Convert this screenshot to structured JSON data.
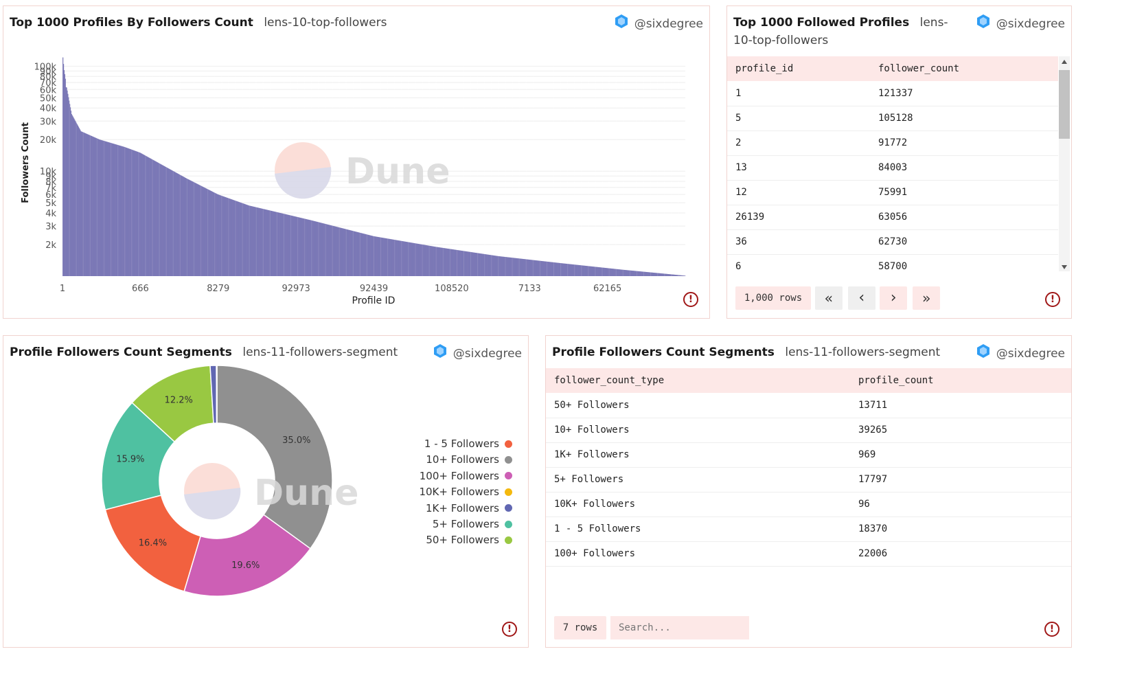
{
  "panels": {
    "bar_panel": {
      "title": "Top 1000 Profiles By Followers Count",
      "query": "lens-10-top-followers",
      "author": "@sixdegree",
      "warning_icon": "!"
    },
    "top_table_panel": {
      "title": "Top 1000 Followed Profiles",
      "query": "lens-10-top-followers",
      "author": "@sixdegree",
      "columns": [
        "profile_id",
        "follower_count"
      ],
      "rows": [
        [
          "1",
          "121337"
        ],
        [
          "5",
          "105128"
        ],
        [
          "2",
          "91772"
        ],
        [
          "13",
          "84003"
        ],
        [
          "12",
          "75991"
        ],
        [
          "26139",
          "63056"
        ],
        [
          "36",
          "62730"
        ],
        [
          "6",
          "58700"
        ]
      ],
      "row_count": "1,000 rows",
      "pager": {
        "first": "«",
        "prev": "‹",
        "next": "›",
        "last": "»"
      },
      "warning_icon": "!"
    },
    "pie_panel": {
      "title": "Profile Followers Count Segments",
      "query": "lens-11-followers-segment",
      "author": "@sixdegree",
      "warning_icon": "!"
    },
    "segment_table_panel": {
      "title": "Profile Followers Count Segments",
      "query": "lens-11-followers-segment",
      "author": "@sixdegree",
      "columns": [
        "follower_count_type",
        "profile_count"
      ],
      "rows": [
        [
          "50+ Followers",
          "13711"
        ],
        [
          "10+ Followers",
          "39265"
        ],
        [
          "1K+ Followers",
          "969"
        ],
        [
          "5+ Followers",
          "17797"
        ],
        [
          "10K+ Followers",
          "96"
        ],
        [
          "1 - 5 Followers",
          "18370"
        ],
        [
          "100+ Followers",
          "22006"
        ]
      ],
      "row_count": "7 rows",
      "search_placeholder": "Search...",
      "warning_icon": "!"
    }
  },
  "watermark": "Dune",
  "colors": {
    "bar": "#7b78b6",
    "header_bg": "#fde8e7",
    "warning": "#a01717",
    "border": "#f1d3cf"
  },
  "chart_data": [
    {
      "type": "bar",
      "title": "Top 1000 Profiles By Followers Count",
      "xlabel": "Profile ID",
      "ylabel": "Followers Count",
      "yscale": "log",
      "ylim": [
        1000,
        130000
      ],
      "y_ticks": [
        {
          "value": 100000,
          "label": "100k"
        },
        {
          "value": 90000,
          "label": "90k"
        },
        {
          "value": 80000,
          "label": "80k"
        },
        {
          "value": 70000,
          "label": "70k"
        },
        {
          "value": 60000,
          "label": "60k"
        },
        {
          "value": 50000,
          "label": "50k"
        },
        {
          "value": 40000,
          "label": "40k"
        },
        {
          "value": 30000,
          "label": "30k"
        },
        {
          "value": 20000,
          "label": "20k"
        },
        {
          "value": 10000,
          "label": "10k"
        },
        {
          "value": 9000,
          "label": "9k"
        },
        {
          "value": 8000,
          "label": "8k"
        },
        {
          "value": 7000,
          "label": "7k"
        },
        {
          "value": 6000,
          "label": "6k"
        },
        {
          "value": 5000,
          "label": "5k"
        },
        {
          "value": 4000,
          "label": "4k"
        },
        {
          "value": 3000,
          "label": "3k"
        },
        {
          "value": 2000,
          "label": "2k"
        }
      ],
      "x_tick_labels": [
        "1",
        "666",
        "8279",
        "92973",
        "92439",
        "108520",
        "7133",
        "62165"
      ],
      "bar_count": 1000,
      "profile_rank_samples": [
        {
          "rank": 1,
          "value": 121337
        },
        {
          "rank": 2,
          "value": 105128
        },
        {
          "rank": 3,
          "value": 91772
        },
        {
          "rank": 4,
          "value": 84003
        },
        {
          "rank": 5,
          "value": 75991
        },
        {
          "rank": 6,
          "value": 63056
        },
        {
          "rank": 7,
          "value": 62730
        },
        {
          "rank": 8,
          "value": 58700
        },
        {
          "rank": 15,
          "value": 35000
        },
        {
          "rank": 30,
          "value": 24000
        },
        {
          "rank": 60,
          "value": 20000
        },
        {
          "rank": 100,
          "value": 17000
        },
        {
          "rank": 125,
          "value": 15000
        },
        {
          "rank": 160,
          "value": 11500
        },
        {
          "rank": 200,
          "value": 8500
        },
        {
          "rank": 250,
          "value": 6000
        },
        {
          "rank": 300,
          "value": 4700
        },
        {
          "rank": 350,
          "value": 4000
        },
        {
          "rank": 400,
          "value": 3400
        },
        {
          "rank": 500,
          "value": 2400
        },
        {
          "rank": 600,
          "value": 1900
        },
        {
          "rank": 700,
          "value": 1550
        },
        {
          "rank": 800,
          "value": 1330
        },
        {
          "rank": 900,
          "value": 1150
        },
        {
          "rank": 1000,
          "value": 1010
        }
      ]
    },
    {
      "type": "pie",
      "title": "Profile Followers Count Segments",
      "donut": true,
      "slices": [
        {
          "label": "10+ Followers",
          "value": 39265,
          "pct_label": "35.0%",
          "color": "#909090"
        },
        {
          "label": "100+ Followers",
          "value": 22006,
          "pct_label": "19.6%",
          "color": "#cd5fb5"
        },
        {
          "label": "1 - 5 Followers",
          "value": 18370,
          "pct_label": "16.4%",
          "color": "#f2613f"
        },
        {
          "label": "5+ Followers",
          "value": 17797,
          "pct_label": "15.9%",
          "color": "#4fc1a1"
        },
        {
          "label": "50+ Followers",
          "value": 13711,
          "pct_label": "12.2%",
          "color": "#99c842"
        },
        {
          "label": "1K+ Followers",
          "value": 969,
          "pct_label": "",
          "color": "#6167b2"
        },
        {
          "label": "10K+ Followers",
          "value": 96,
          "pct_label": "",
          "color": "#f4b90e"
        }
      ],
      "legend": [
        {
          "label": "1 - 5 Followers",
          "color": "#f2613f"
        },
        {
          "label": "10+ Followers",
          "color": "#909090"
        },
        {
          "label": "100+ Followers",
          "color": "#cd5fb5"
        },
        {
          "label": "10K+ Followers",
          "color": "#f4b90e"
        },
        {
          "label": "1K+ Followers",
          "color": "#6167b2"
        },
        {
          "label": "5+ Followers",
          "color": "#4fc1a1"
        },
        {
          "label": "50+ Followers",
          "color": "#99c842"
        }
      ]
    }
  ]
}
